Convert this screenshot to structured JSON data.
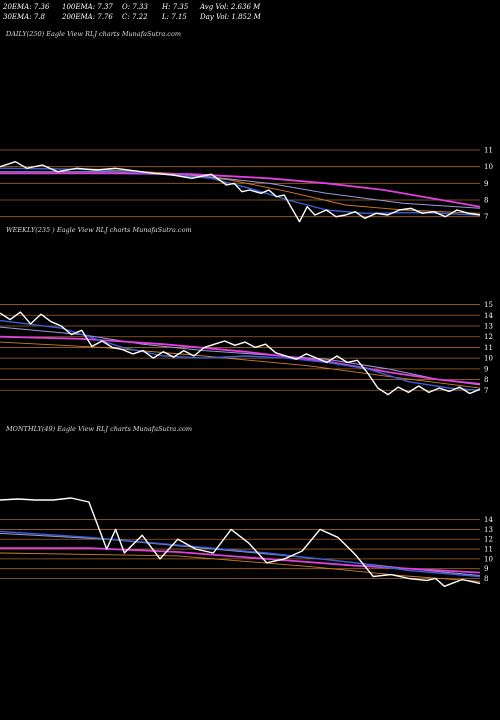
{
  "header": {
    "ema20": "20EMA: 7.36",
    "ema100": "100EMA: 7.37",
    "open": "O: 7.33",
    "high": "H: 7.35",
    "avgvol": "Avg Vol: 2.636  M",
    "ema30": "30EMA: 7.8",
    "ema200": "200EMA: 7.76",
    "close": "C: 7.22",
    "low": "L: 7.15",
    "dayvol": "Day Vol: 1.852  M"
  },
  "colors": {
    "background": "#000000",
    "price": "#ffffff",
    "ema_fast": "#3a5fd6",
    "ema_slow": "#e040e0",
    "ema_mid": "#9a9ad8",
    "ema_orange": "#d08020",
    "grid": "#a06428"
  },
  "chart_data": [
    {
      "type": "line",
      "label": "DAILY(250) Eagle  View  RLJ charts MunafaSutra.com",
      "y_ticks": [
        11,
        10,
        9,
        8,
        7
      ],
      "ylim": [
        6.2,
        11.6
      ],
      "n_points": 250,
      "series": [
        {
          "role": "price",
          "points": [
            [
              0,
              10.0
            ],
            [
              8,
              10.3
            ],
            [
              14,
              9.9
            ],
            [
              22,
              10.1
            ],
            [
              30,
              9.7
            ],
            [
              40,
              9.9
            ],
            [
              50,
              9.8
            ],
            [
              60,
              9.9
            ],
            [
              70,
              9.75
            ],
            [
              80,
              9.6
            ],
            [
              90,
              9.5
            ],
            [
              100,
              9.3
            ],
            [
              110,
              9.55
            ],
            [
              118,
              8.9
            ],
            [
              122,
              9.0
            ],
            [
              126,
              8.5
            ],
            [
              130,
              8.6
            ],
            [
              136,
              8.4
            ],
            [
              140,
              8.6
            ],
            [
              144,
              8.2
            ],
            [
              148,
              8.3
            ],
            [
              152,
              7.5
            ],
            [
              156,
              6.7
            ],
            [
              160,
              7.6
            ],
            [
              164,
              7.1
            ],
            [
              170,
              7.4
            ],
            [
              175,
              7.0
            ],
            [
              180,
              7.1
            ],
            [
              185,
              7.3
            ],
            [
              190,
              6.9
            ],
            [
              196,
              7.2
            ],
            [
              202,
              7.1
            ],
            [
              208,
              7.4
            ],
            [
              214,
              7.5
            ],
            [
              220,
              7.2
            ],
            [
              226,
              7.3
            ],
            [
              232,
              7.0
            ],
            [
              238,
              7.4
            ],
            [
              244,
              7.2
            ],
            [
              250,
              7.1
            ]
          ]
        },
        {
          "role": "ema_fast",
          "points": [
            [
              0,
              9.9
            ],
            [
              40,
              9.85
            ],
            [
              80,
              9.6
            ],
            [
              110,
              9.3
            ],
            [
              130,
              8.7
            ],
            [
              150,
              8.0
            ],
            [
              170,
              7.4
            ],
            [
              190,
              7.2
            ],
            [
              220,
              7.25
            ],
            [
              250,
              7.1
            ]
          ]
        },
        {
          "role": "ema_orange",
          "points": [
            [
              0,
              9.9
            ],
            [
              50,
              9.85
            ],
            [
              90,
              9.6
            ],
            [
              120,
              9.2
            ],
            [
              150,
              8.5
            ],
            [
              180,
              7.7
            ],
            [
              210,
              7.4
            ],
            [
              250,
              7.2
            ]
          ]
        },
        {
          "role": "ema_mid",
          "points": [
            [
              0,
              9.7
            ],
            [
              60,
              9.7
            ],
            [
              100,
              9.5
            ],
            [
              140,
              9.0
            ],
            [
              170,
              8.4
            ],
            [
              210,
              7.8
            ],
            [
              250,
              7.5
            ]
          ]
        },
        {
          "role": "ema_slow",
          "points": [
            [
              0,
              9.6
            ],
            [
              60,
              9.6
            ],
            [
              100,
              9.55
            ],
            [
              140,
              9.3
            ],
            [
              170,
              9.0
            ],
            [
              200,
              8.6
            ],
            [
              230,
              8.0
            ],
            [
              250,
              7.6
            ]
          ]
        }
      ]
    },
    {
      "type": "line",
      "label": "WEEKLY(235        ) Eagle  View  RLJ charts MunafaSutra.com",
      "y_ticks": [
        15,
        14,
        13,
        12,
        11,
        10,
        9,
        8,
        7
      ],
      "ylim": [
        6.0,
        15.8
      ],
      "n_points": 235,
      "series": [
        {
          "role": "price",
          "points": [
            [
              0,
              14.2
            ],
            [
              5,
              13.6
            ],
            [
              10,
              14.3
            ],
            [
              15,
              13.2
            ],
            [
              20,
              14.1
            ],
            [
              25,
              13.4
            ],
            [
              30,
              13.0
            ],
            [
              35,
              12.2
            ],
            [
              40,
              12.6
            ],
            [
              45,
              11.1
            ],
            [
              50,
              11.6
            ],
            [
              55,
              11.0
            ],
            [
              60,
              10.8
            ],
            [
              65,
              10.4
            ],
            [
              70,
              10.7
            ],
            [
              75,
              10.0
            ],
            [
              80,
              10.6
            ],
            [
              85,
              10.1
            ],
            [
              90,
              10.7
            ],
            [
              95,
              10.2
            ],
            [
              100,
              11.0
            ],
            [
              105,
              11.3
            ],
            [
              110,
              11.6
            ],
            [
              115,
              11.2
            ],
            [
              120,
              11.5
            ],
            [
              125,
              11.0
            ],
            [
              130,
              11.3
            ],
            [
              135,
              10.5
            ],
            [
              140,
              10.2
            ],
            [
              145,
              9.9
            ],
            [
              150,
              10.4
            ],
            [
              155,
              10.0
            ],
            [
              160,
              9.6
            ],
            [
              165,
              10.2
            ],
            [
              170,
              9.6
            ],
            [
              175,
              9.8
            ],
            [
              180,
              8.6
            ],
            [
              185,
              7.2
            ],
            [
              190,
              6.6
            ],
            [
              195,
              7.3
            ],
            [
              200,
              6.8
            ],
            [
              205,
              7.4
            ],
            [
              210,
              6.8
            ],
            [
              215,
              7.2
            ],
            [
              220,
              6.9
            ],
            [
              225,
              7.3
            ],
            [
              230,
              6.7
            ],
            [
              235,
              7.1
            ]
          ]
        },
        {
          "role": "ema_fast",
          "points": [
            [
              0,
              13.5
            ],
            [
              30,
              12.8
            ],
            [
              60,
              11.0
            ],
            [
              80,
              10.2
            ],
            [
              100,
              10.0
            ],
            [
              120,
              10.2
            ],
            [
              140,
              10.0
            ],
            [
              160,
              9.6
            ],
            [
              180,
              9.0
            ],
            [
              200,
              7.8
            ],
            [
              220,
              7.2
            ],
            [
              235,
              7.0
            ]
          ]
        },
        {
          "role": "ema_mid",
          "points": [
            [
              0,
              12.9
            ],
            [
              40,
              12.2
            ],
            [
              70,
              11.3
            ],
            [
              100,
              10.7
            ],
            [
              130,
              10.3
            ],
            [
              160,
              9.9
            ],
            [
              190,
              9.0
            ],
            [
              215,
              8.0
            ],
            [
              235,
              7.5
            ]
          ]
        },
        {
          "role": "ema_slow",
          "points": [
            [
              0,
              12.0
            ],
            [
              40,
              11.8
            ],
            [
              80,
              11.3
            ],
            [
              120,
              10.6
            ],
            [
              160,
              9.7
            ],
            [
              190,
              8.7
            ],
            [
              215,
              8.0
            ],
            [
              235,
              7.6
            ]
          ]
        },
        {
          "role": "ema_orange",
          "points": [
            [
              0,
              11.5
            ],
            [
              50,
              11.0
            ],
            [
              100,
              10.2
            ],
            [
              150,
              9.3
            ],
            [
              190,
              8.3
            ],
            [
              235,
              7.2
            ]
          ]
        }
      ]
    },
    {
      "type": "line",
      "label": "MONTHLY(49) Eagle  View  RLJ charts MunafaSutra.com",
      "y_ticks": [
        14,
        13,
        12,
        11,
        10,
        9,
        8
      ],
      "ylim": [
        5.5,
        16.0
      ],
      "n_points": 49,
      "series": [
        {
          "role": "price",
          "points": [
            [
              0,
              16.0
            ],
            [
              2,
              16.1
            ],
            [
              4,
              16.0
            ],
            [
              6,
              16.0
            ],
            [
              8,
              16.2
            ],
            [
              10,
              15.8
            ],
            [
              12,
              11.0
            ],
            [
              13,
              13.0
            ],
            [
              14,
              10.6
            ],
            [
              16,
              12.4
            ],
            [
              18,
              10.0
            ],
            [
              20,
              12.0
            ],
            [
              22,
              11.0
            ],
            [
              24,
              10.6
            ],
            [
              26,
              13.0
            ],
            [
              28,
              11.6
            ],
            [
              30,
              9.6
            ],
            [
              32,
              10.0
            ],
            [
              34,
              10.8
            ],
            [
              36,
              13.0
            ],
            [
              38,
              12.2
            ],
            [
              40,
              10.4
            ],
            [
              42,
              8.2
            ],
            [
              44,
              8.4
            ],
            [
              46,
              8.0
            ],
            [
              48,
              7.8
            ],
            [
              49,
              8.0
            ],
            [
              50,
              7.2
            ],
            [
              52,
              7.9
            ],
            [
              54,
              7.5
            ]
          ]
        },
        {
          "role": "ema_fast",
          "points": [
            [
              0,
              12.8
            ],
            [
              10,
              12.2
            ],
            [
              20,
              11.4
            ],
            [
              30,
              10.6
            ],
            [
              40,
              9.6
            ],
            [
              46,
              8.8
            ],
            [
              54,
              8.2
            ]
          ]
        },
        {
          "role": "ema_mid",
          "points": [
            [
              0,
              12.6
            ],
            [
              12,
              12.0
            ],
            [
              24,
              11.0
            ],
            [
              36,
              10.0
            ],
            [
              46,
              9.0
            ],
            [
              54,
              8.3
            ]
          ]
        },
        {
          "role": "ema_slow",
          "points": [
            [
              0,
              11.1
            ],
            [
              10,
              11.1
            ],
            [
              20,
              10.7
            ],
            [
              30,
              10.0
            ],
            [
              40,
              9.3
            ],
            [
              48,
              8.9
            ],
            [
              54,
              8.6
            ]
          ]
        },
        {
          "role": "ema_orange",
          "points": [
            [
              0,
              10.6
            ],
            [
              20,
              10.3
            ],
            [
              35,
              9.2
            ],
            [
              45,
              8.3
            ],
            [
              54,
              7.7
            ]
          ]
        }
      ]
    }
  ]
}
